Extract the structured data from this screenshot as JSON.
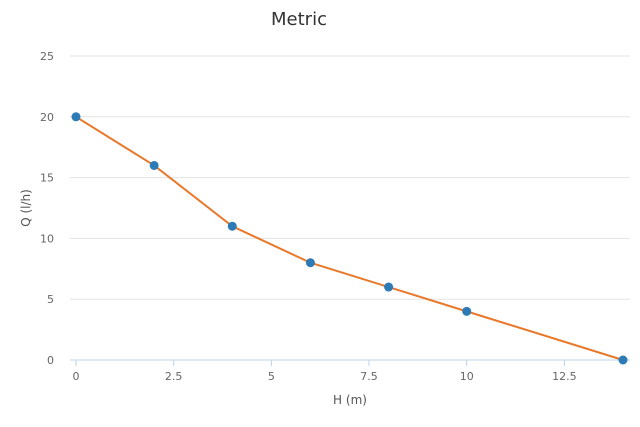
{
  "chart_data": {
    "type": "line",
    "title": "Metric",
    "xlabel": "H (m)",
    "ylabel": "Q (l/h)",
    "xlim": [
      0,
      14
    ],
    "ylim": [
      0,
      25
    ],
    "x_ticks": [
      0,
      2.5,
      5,
      7.5,
      10,
      12.5
    ],
    "x_tick_labels": [
      "0",
      "2.5",
      "5",
      "7.5",
      "10",
      "12.5"
    ],
    "y_ticks": [
      0,
      5,
      10,
      15,
      20,
      25
    ],
    "y_tick_labels": [
      "0",
      "5",
      "10",
      "15",
      "20",
      "25"
    ],
    "grid": "horizontal",
    "series": [
      {
        "x": [
          0,
          2,
          4,
          6,
          8,
          10,
          14
        ],
        "y": [
          20,
          16,
          11,
          8,
          6,
          4,
          0
        ],
        "line_color": "#e8782a",
        "marker_color": "#2d7bb6"
      }
    ]
  },
  "colors": {
    "grid": "#e3e3e3",
    "x_axis": "#bcd3e8",
    "title": "#333333",
    "tick": "#666666"
  }
}
